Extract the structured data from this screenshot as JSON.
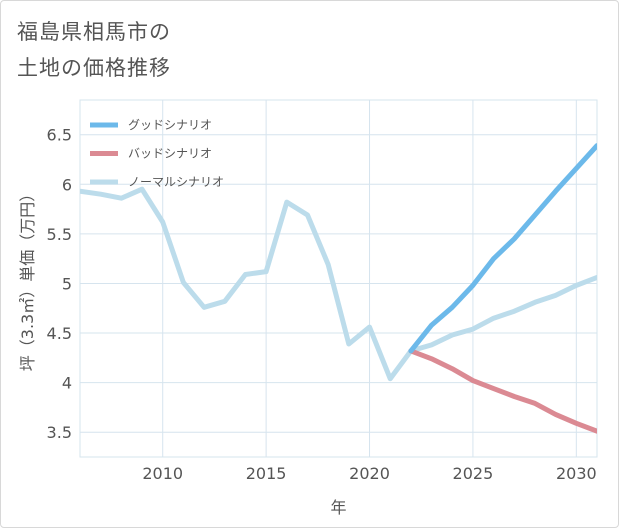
{
  "title_line1": "福島県相馬市の",
  "title_line2": "土地の価格推移",
  "chart_data": {
    "type": "line",
    "title": "福島県相馬市の土地の価格推移",
    "xlabel": "年",
    "ylabel": "坪（3.3㎡）単価（万円）",
    "xlim": [
      2006,
      2031
    ],
    "ylim": [
      3.25,
      6.85
    ],
    "grid": true,
    "legend_position": "top-left",
    "x_ticks": [
      2010,
      2015,
      2020,
      2025,
      2030
    ],
    "y_ticks": [
      3.5,
      4,
      4.5,
      5,
      5.5,
      6,
      6.5
    ],
    "x_tick_labels": [
      "2010",
      "2015",
      "2020",
      "2025",
      "2030"
    ],
    "y_tick_labels": [
      "3.5",
      "4",
      "4.5",
      "5",
      "5.5",
      "6",
      "6.5"
    ],
    "series": [
      {
        "name": "グッドシナリオ",
        "color": "#6cb9ea",
        "x": [
          2022,
          2023,
          2024,
          2025,
          2026,
          2027,
          2028,
          2029,
          2030,
          2031
        ],
        "values": [
          4.32,
          4.58,
          4.76,
          4.98,
          5.25,
          5.45,
          5.69,
          5.93,
          6.16,
          6.39
        ]
      },
      {
        "name": "バッドシナリオ",
        "color": "#db8a93",
        "x": [
          2022,
          2023,
          2024,
          2025,
          2026,
          2027,
          2028,
          2029,
          2030,
          2031
        ],
        "values": [
          4.32,
          4.24,
          4.14,
          4.02,
          3.94,
          3.86,
          3.79,
          3.68,
          3.59,
          3.51
        ]
      },
      {
        "name": "ノーマルシナリオ",
        "color": "#bcdceb",
        "x": [
          2006,
          2007,
          2008,
          2009,
          2010,
          2011,
          2012,
          2013,
          2014,
          2015,
          2016,
          2017,
          2018,
          2019,
          2020,
          2021,
          2022,
          2023,
          2024,
          2025,
          2026,
          2027,
          2028,
          2029,
          2030,
          2031
        ],
        "values": [
          5.93,
          5.9,
          5.86,
          5.95,
          5.62,
          5.01,
          4.76,
          4.82,
          5.09,
          5.12,
          5.82,
          5.69,
          5.19,
          4.39,
          4.56,
          4.04,
          4.32,
          4.38,
          4.48,
          4.54,
          4.65,
          4.72,
          4.81,
          4.88,
          4.98,
          5.06
        ]
      }
    ]
  }
}
